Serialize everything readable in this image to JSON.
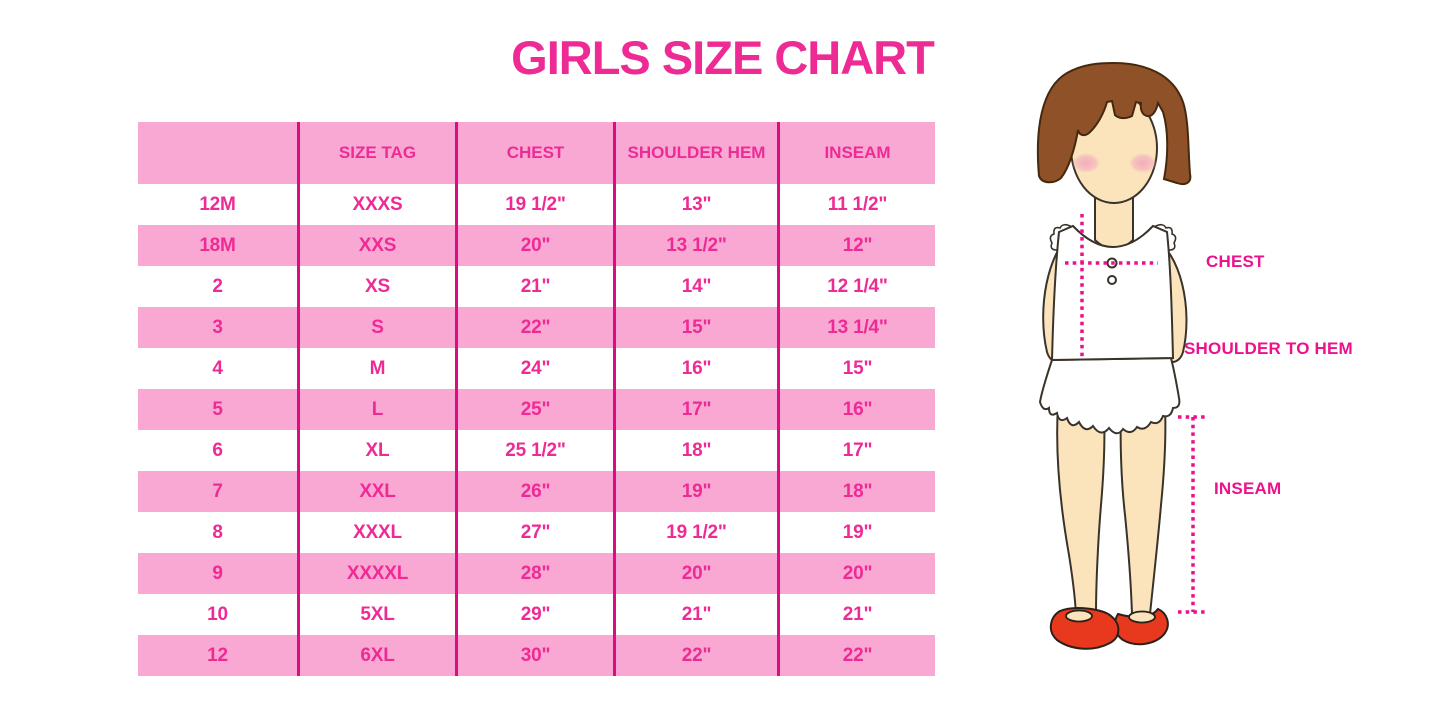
{
  "title": "GIRLS SIZE CHART",
  "figure_labels": {
    "chest": "CHEST",
    "shoulder_to_hem": "SHOULDER TO HEM",
    "inseam": "INSEAM"
  },
  "colors": {
    "title_pink": "#ee2b95",
    "row_pink": "#f9a8d3",
    "divider_magenta": "#de0b81",
    "measure_label_magenta": "#ed118c",
    "dotted_line_magenta": "#ee0f8c",
    "hair_brown": "#8f5127",
    "skin": "#fbe4bc",
    "blush_pink": "#f3aec0",
    "shoe_red": "#e8391f"
  },
  "chart_data": {
    "type": "table",
    "title": "GIRLS SIZE CHART",
    "columns": [
      "",
      "SIZE TAG",
      "CHEST",
      "SHOULDER HEM",
      "INSEAM"
    ],
    "rows": [
      [
        "12M",
        "XXXS",
        "19 1/2\"",
        "13\"",
        "11 1/2\""
      ],
      [
        "18M",
        "XXS",
        "20\"",
        "13 1/2\"",
        "12\""
      ],
      [
        "2",
        "XS",
        "21\"",
        "14\"",
        "12 1/4\""
      ],
      [
        "3",
        "S",
        "22\"",
        "15\"",
        "13 1/4\""
      ],
      [
        "4",
        "M",
        "24\"",
        "16\"",
        "15\""
      ],
      [
        "5",
        "L",
        "25\"",
        "17\"",
        "16\""
      ],
      [
        "6",
        "XL",
        "25 1/2\"",
        "18\"",
        "17\""
      ],
      [
        "7",
        "XXL",
        "26\"",
        "19\"",
        "18\""
      ],
      [
        "8",
        "XXXL",
        "27\"",
        "19 1/2\"",
        "19\""
      ],
      [
        "9",
        "XXXXL",
        "28\"",
        "20\"",
        "20\""
      ],
      [
        "10",
        "5XL",
        "29\"",
        "21\"",
        "21\""
      ],
      [
        "12",
        "6XL",
        "30\"",
        "22\"",
        "22\""
      ]
    ],
    "row_fill_pattern": "alternating white / pink starting with white after pink header",
    "layout": {
      "grid": "vertical magenta dividers only, no horizontal borders"
    }
  }
}
